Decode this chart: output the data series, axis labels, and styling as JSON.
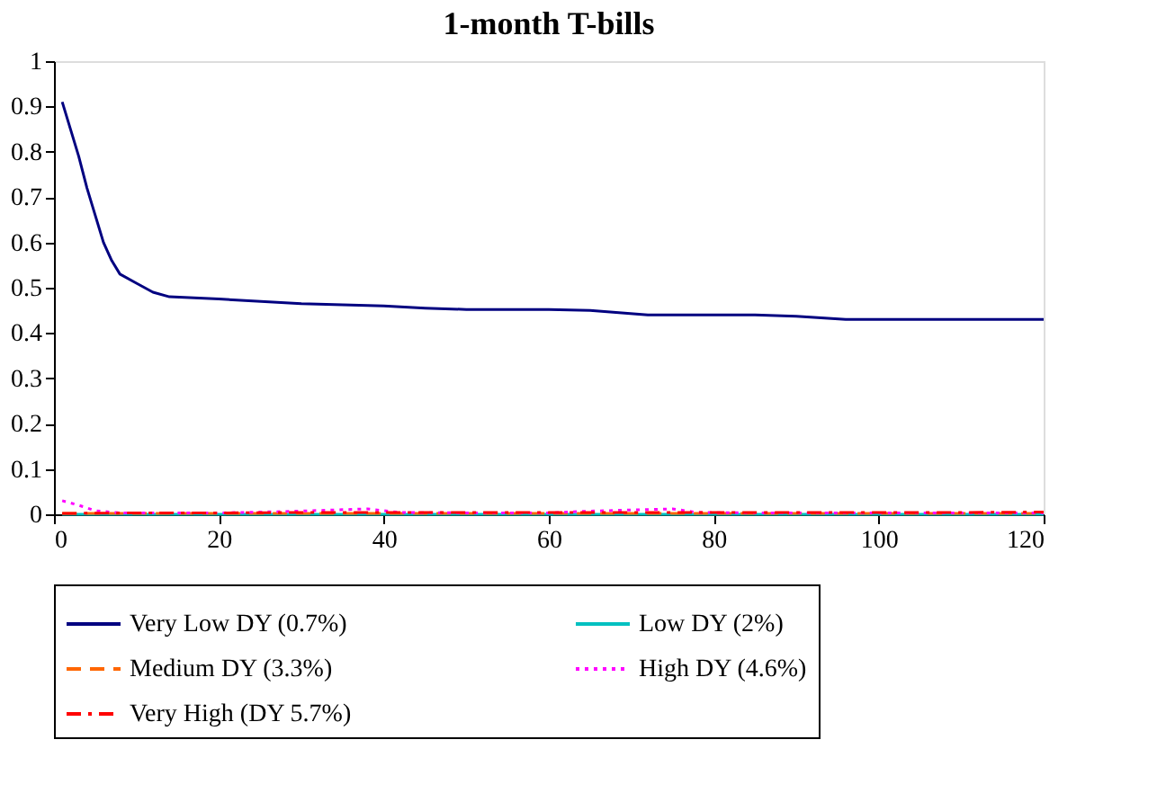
{
  "chart_data": {
    "type": "line",
    "title": "1-month T-bills",
    "xlim": [
      0,
      120
    ],
    "xticks": [
      0,
      20,
      40,
      60,
      80,
      100,
      120
    ],
    "ylim": [
      0,
      1
    ],
    "yticks": [
      0,
      0.1,
      0.2,
      0.3,
      0.4,
      0.5,
      0.6,
      0.7,
      0.8,
      0.9,
      1
    ],
    "grid": false,
    "legend": "bottom",
    "marker": "none",
    "series": [
      {
        "name": "Very Low DY (0.7%)",
        "color": "#000080",
        "line_style": "solid",
        "x": [
          1,
          2,
          3,
          4,
          5,
          6,
          7,
          8,
          10,
          12,
          14,
          20,
          30,
          40,
          45,
          50,
          60,
          65,
          72,
          80,
          85,
          90,
          96,
          100,
          120
        ],
        "values": [
          0.91,
          0.85,
          0.79,
          0.72,
          0.66,
          0.6,
          0.56,
          0.53,
          0.51,
          0.49,
          0.48,
          0.475,
          0.465,
          0.46,
          0.455,
          0.452,
          0.452,
          0.45,
          0.44,
          0.44,
          0.44,
          0.437,
          0.43,
          0.43,
          0.43
        ]
      },
      {
        "name": "Low DY (2%)",
        "color": "#00c0c0",
        "line_style": "solid",
        "x": [
          1,
          120
        ],
        "values": [
          0,
          0
        ]
      },
      {
        "name": "Medium DY (3.3%)",
        "color": "#ff6600",
        "line_style": "dashed",
        "x": [
          1,
          40,
          80,
          120
        ],
        "values": [
          0.002,
          0.002,
          0.002,
          0.002
        ]
      },
      {
        "name": "High DY (4.6%)",
        "color": "#ff00ff",
        "line_style": "dotted",
        "x": [
          1,
          3,
          5,
          8,
          20,
          28,
          38,
          42,
          50,
          60,
          65,
          75,
          78,
          85,
          100,
          120
        ],
        "values": [
          0.03,
          0.02,
          0.008,
          0.003,
          0.003,
          0.006,
          0.012,
          0.004,
          0.003,
          0.003,
          0.007,
          0.012,
          0.004,
          0.003,
          0.003,
          0.003
        ]
      },
      {
        "name": "Very High (DY 5.7%)",
        "color": "#ff0000",
        "line_style": "dashdot",
        "x": [
          1,
          10,
          20,
          30,
          40,
          50,
          60,
          70,
          80,
          90,
          100,
          110,
          120
        ],
        "values": [
          0.002,
          0.003,
          0.003,
          0.004,
          0.004,
          0.004,
          0.004,
          0.004,
          0.004,
          0.004,
          0.004,
          0.004,
          0.005
        ]
      }
    ]
  }
}
